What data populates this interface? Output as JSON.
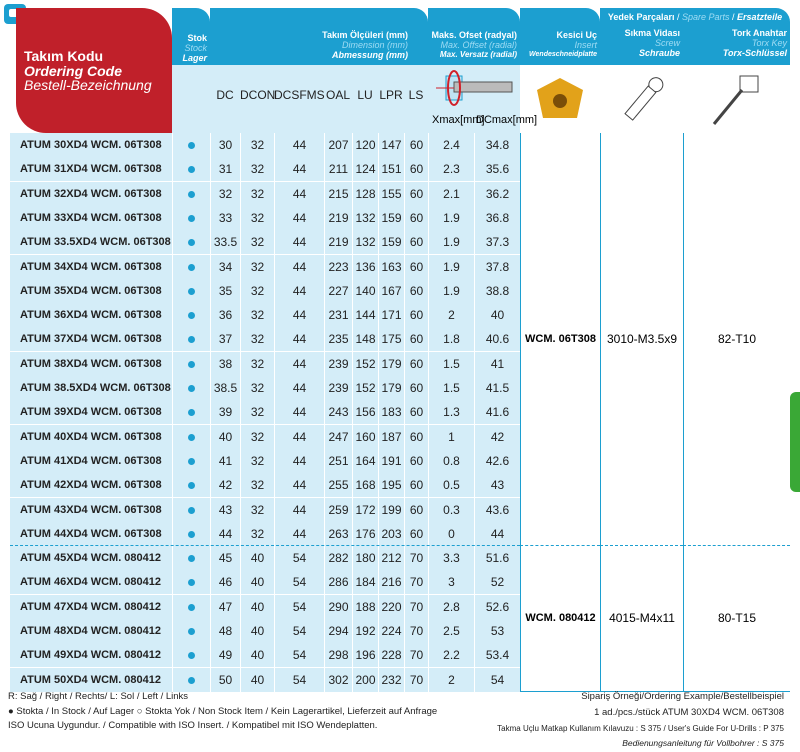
{
  "header": {
    "code": {
      "tr": "Takım Kodu",
      "en": "Ordering Code",
      "de": "Bestell-Bezeichnung"
    },
    "stock": {
      "tr": "Stok",
      "en": "Stock",
      "de": "Lager"
    },
    "dimension": {
      "tr": "Takım Ölçüleri (mm)",
      "en": "Dimension (mm)",
      "de": "Abmessung (mm)"
    },
    "offset": {
      "tr": "Maks. Ofset (radyal)",
      "en": "Max. Offset (radial)",
      "de": "Max. Versatz (radial)"
    },
    "insert": {
      "tr": "Kesici Uç",
      "en": "Insert",
      "de": "Wendeschneidplatte"
    },
    "spare": {
      "tr": "Yedek Parçaları",
      "en": "Spare Parts",
      "de": "Ersatzteile"
    },
    "screw": {
      "tr": "Sıkma Vidası",
      "en": "Screw",
      "de": "Schraube"
    },
    "key": {
      "tr": "Tork Anahtar",
      "en": "Torx Key",
      "de": "Torx-Schlüssel"
    },
    "columns": [
      "DC",
      "DCON",
      "DCSFMS",
      "OAL",
      "LU",
      "LPR",
      "LS"
    ],
    "xmax": "Xmax[mm]",
    "dcmax": "DCmax[mm]"
  },
  "rows": [
    [
      "ATUM  30XD4  WCM.  06T308",
      30,
      32,
      44,
      207,
      120,
      147,
      60,
      2.4,
      34.8
    ],
    [
      "ATUM  31XD4  WCM.  06T308",
      31,
      32,
      44,
      211,
      124,
      151,
      60,
      2.3,
      35.6
    ],
    [
      "ATUM  32XD4  WCM.  06T308",
      32,
      32,
      44,
      215,
      128,
      155,
      60,
      2.1,
      36.2
    ],
    [
      "ATUM  33XD4  WCM.  06T308",
      33,
      32,
      44,
      219,
      132,
      159,
      60,
      1.9,
      36.8
    ],
    [
      "ATUM  33.5XD4 WCM.  06T308",
      33.5,
      32,
      44,
      219,
      132,
      159,
      60,
      1.9,
      37.3
    ],
    [
      "ATUM  34XD4  WCM.  06T308",
      34,
      32,
      44,
      223,
      136,
      163,
      60,
      1.9,
      37.8
    ],
    [
      "ATUM  35XD4  WCM.  06T308",
      35,
      32,
      44,
      227,
      140,
      167,
      60,
      1.9,
      38.8
    ],
    [
      "ATUM  36XD4  WCM.  06T308",
      36,
      32,
      44,
      231,
      144,
      171,
      60,
      2,
      40
    ],
    [
      "ATUM  37XD4  WCM.  06T308",
      37,
      32,
      44,
      235,
      148,
      175,
      60,
      1.8,
      40.6
    ],
    [
      "ATUM  38XD4  WCM.  06T308",
      38,
      32,
      44,
      239,
      152,
      179,
      60,
      1.5,
      41
    ],
    [
      "ATUM  38.5XD4 WCM.  06T308",
      38.5,
      32,
      44,
      239,
      152,
      179,
      60,
      1.5,
      41.5
    ],
    [
      "ATUM  39XD4  WCM.  06T308",
      39,
      32,
      44,
      243,
      156,
      183,
      60,
      1.3,
      41.6
    ],
    [
      "ATUM  40XD4  WCM.  06T308",
      40,
      32,
      44,
      247,
      160,
      187,
      60,
      1,
      42
    ],
    [
      "ATUM  41XD4  WCM.  06T308",
      41,
      32,
      44,
      251,
      164,
      191,
      60,
      0.8,
      42.6
    ],
    [
      "ATUM  42XD4  WCM.  06T308",
      42,
      32,
      44,
      255,
      168,
      195,
      60,
      0.5,
      43
    ],
    [
      "ATUM  43XD4  WCM.  06T308",
      43,
      32,
      44,
      259,
      172,
      199,
      60,
      0.3,
      43.6
    ],
    [
      "ATUM  44XD4  WCM.  06T308",
      44,
      32,
      44,
      263,
      176,
      203,
      60,
      0,
      44
    ],
    [
      "ATUM  45XD4  WCM.  080412",
      45,
      40,
      54,
      282,
      180,
      212,
      70,
      3.3,
      51.6
    ],
    [
      "ATUM  46XD4  WCM.  080412",
      46,
      40,
      54,
      286,
      184,
      216,
      70,
      3,
      52
    ],
    [
      "ATUM  47XD4  WCM.  080412",
      47,
      40,
      54,
      290,
      188,
      220,
      70,
      2.8,
      52.6
    ],
    [
      "ATUM  48XD4  WCM.  080412",
      48,
      40,
      54,
      294,
      192,
      224,
      70,
      2.5,
      53
    ],
    [
      "ATUM  49XD4  WCM.  080412",
      49,
      40,
      54,
      298,
      196,
      228,
      70,
      2.2,
      53.4
    ],
    [
      "ATUM  50XD4  WCM.  080412",
      50,
      40,
      54,
      302,
      200,
      232,
      70,
      2,
      54
    ]
  ],
  "groups": [
    {
      "insert": "WCM. 06T308",
      "screw": "3010-M3.5x9",
      "key": "82-T10"
    },
    {
      "insert": "WCM. 080412",
      "screw": "4015-M4x11",
      "key": "80-T15"
    }
  ],
  "footer": {
    "l1": "R: Sağ / Right / Rechts/  L: Sol / Left / Links",
    "l2": "● Stokta / In Stock / Auf Lager  ○ Stokta Yok / Non Stock Item / Kein Lagerartikel, Lieferzeit auf Anfrage",
    "l3": "ISO Ucuna Uygundur. / Compatible with ISO Insert. / Kompatibel mit ISO Wendeplatten.",
    "r1": "Sipariş Örneği/Ordering Example/Bestellbeispiel",
    "r2": "1 ad./pcs./stück ATUM 30XD4 WCM. 06T308",
    "r3": "Takma Uçlu Matkap Kullanım Kılavuzu : S 375 / User's Guide For U-Drills : P 375",
    "r4": "Bedienungsanleitung für Vollbohrer : S 375"
  },
  "colors": {
    "header": "#1c9fd0",
    "code": "#c0202a",
    "row": "#d4edf8",
    "insert": "#e2a21a",
    "tab": "#3aa836"
  }
}
